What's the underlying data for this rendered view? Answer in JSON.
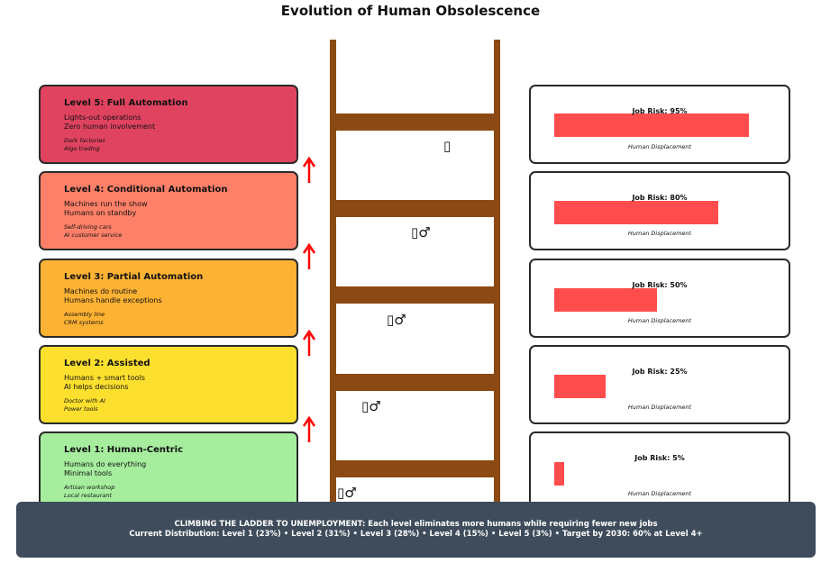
{
  "title": "Evolution of Human Obsolescence",
  "levels": [
    {
      "title": "Level 5: Full Automation",
      "desc": [
        "Lights-out operations",
        "Zero human involvement"
      ],
      "examples": [
        "Dark factories",
        "Algo trading"
      ],
      "color": "#e0435f"
    },
    {
      "title": "Level 4: Conditional Automation",
      "desc": [
        "Machines run the show",
        "Humans on standby"
      ],
      "examples": [
        "Self-driving cars",
        "AI customer service"
      ],
      "color": "#fe8068"
    },
    {
      "title": "Level 3: Partial Automation",
      "desc": [
        "Machines do routine",
        "Humans handle exceptions"
      ],
      "examples": [
        "Assembly line",
        "CRM systems"
      ],
      "color": "#feb233"
    },
    {
      "title": "Level 2: Assisted",
      "desc": [
        "Humans + smart tools",
        "AI helps decisions"
      ],
      "examples": [
        "Doctor with AI",
        "Power tools"
      ],
      "color": "#fde02e"
    },
    {
      "title": "Level 1: Human-Centric",
      "desc": [
        "Humans do everything",
        "Minimal tools"
      ],
      "examples": [
        "Artisan workshop",
        "Local restaurant"
      ],
      "color": "#a6ee9e"
    }
  ],
  "figures": [
    "▯",
    "▯♂",
    "▯♂",
    "▯♂",
    "▯♂"
  ],
  "risks": [
    {
      "label": "Job Risk: 95%",
      "value": 95,
      "desc": "Human Displacement"
    },
    {
      "label": "Job Risk: 80%",
      "value": 80,
      "desc": "Human Displacement"
    },
    {
      "label": "Job Risk: 50%",
      "value": 50,
      "desc": "Human Displacement"
    },
    {
      "label": "Job Risk: 25%",
      "value": 25,
      "desc": "Human Displacement"
    },
    {
      "label": "Job Risk: 5%",
      "value": 5,
      "desc": "Human Displacement"
    }
  ],
  "colors": {
    "ladder": "#8b4a13",
    "arrow": "#ff0000",
    "bar": "#ff4d4d",
    "footer": "#3e4c5b"
  },
  "footer": {
    "line1": "CLIMBING THE LADDER TO UNEMPLOYMENT: Each level eliminates more humans while requiring fewer new jobs",
    "line2": "Current Distribution: Level 1 (23%) • Level 2 (31%) • Level 3 (28%) • Level 4 (15%) • Level 5 (3%) • Target by 2030: 60% at Level 4+"
  }
}
